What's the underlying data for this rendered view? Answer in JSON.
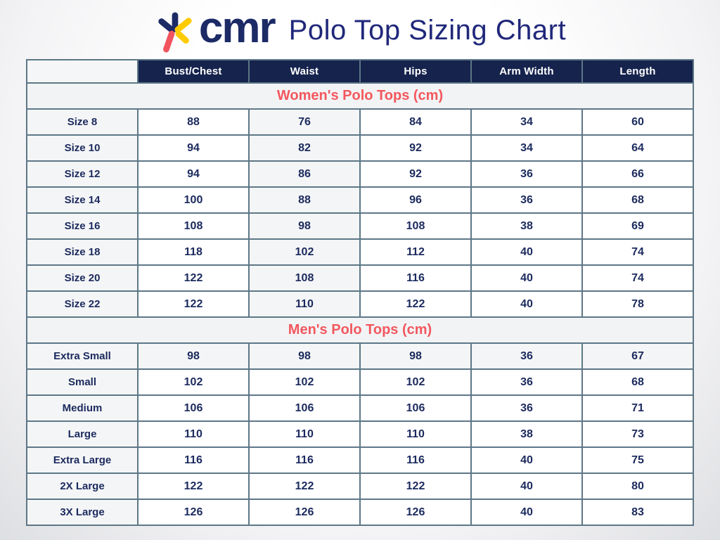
{
  "brand": {
    "name": "cmr"
  },
  "page_title": "Polo Top Sizing Chart",
  "colors": {
    "header_navy": "#15234d",
    "title_indigo": "#20287a",
    "section_coral": "#f2585e",
    "cell_text_navy": "#1b2a5e",
    "grid_slate": "#5d7787",
    "shaded_cell": "#f4f5f6",
    "logo_navy": "#1c2a66",
    "logo_yellow": "#fecb00",
    "logo_red": "#f0545e"
  },
  "icons": {
    "logo_asterisk": "asterisk-star"
  },
  "chart_data": {
    "type": "table",
    "title": "Polo Top Sizing Chart",
    "columns": [
      "Bust/Chest",
      "Waist",
      "Hips",
      "Arm Width",
      "Length"
    ],
    "units": "cm",
    "sections": [
      {
        "title": "Women's Polo Tops (cm)",
        "rows": [
          {
            "label": "Size 8",
            "values": [
              "88",
              "76",
              "84",
              "34",
              "60"
            ]
          },
          {
            "label": "Size 10",
            "values": [
              "94",
              "82",
              "92",
              "34",
              "64"
            ]
          },
          {
            "label": "Size 12",
            "values": [
              "94",
              "86",
              "92",
              "36",
              "66"
            ]
          },
          {
            "label": "Size 14",
            "values": [
              "100",
              "88",
              "96",
              "36",
              "68"
            ]
          },
          {
            "label": "Size 16",
            "values": [
              "108",
              "98",
              "108",
              "38",
              "69"
            ]
          },
          {
            "label": "Size 18",
            "values": [
              "118",
              "102",
              "112",
              "40",
              "74"
            ]
          },
          {
            "label": "Size 20",
            "values": [
              "122",
              "108",
              "116",
              "40",
              "74"
            ]
          },
          {
            "label": "Size 22",
            "values": [
              "122",
              "110",
              "122",
              "40",
              "78"
            ]
          }
        ]
      },
      {
        "title": "Men's Polo Tops (cm)",
        "rows": [
          {
            "label": "Extra Small",
            "values": [
              "98",
              "98",
              "98",
              "36",
              "67"
            ]
          },
          {
            "label": "Small",
            "values": [
              "102",
              "102",
              "102",
              "36",
              "68"
            ]
          },
          {
            "label": "Medium",
            "values": [
              "106",
              "106",
              "106",
              "36",
              "71"
            ]
          },
          {
            "label": "Large",
            "values": [
              "110",
              "110",
              "110",
              "38",
              "73"
            ]
          },
          {
            "label": "Extra Large",
            "values": [
              "116",
              "116",
              "116",
              "40",
              "75"
            ]
          },
          {
            "label": "2X Large",
            "values": [
              "122",
              "122",
              "122",
              "40",
              "80"
            ]
          },
          {
            "label": "3X Large",
            "values": [
              "126",
              "126",
              "126",
              "40",
              "83"
            ]
          }
        ]
      }
    ]
  }
}
